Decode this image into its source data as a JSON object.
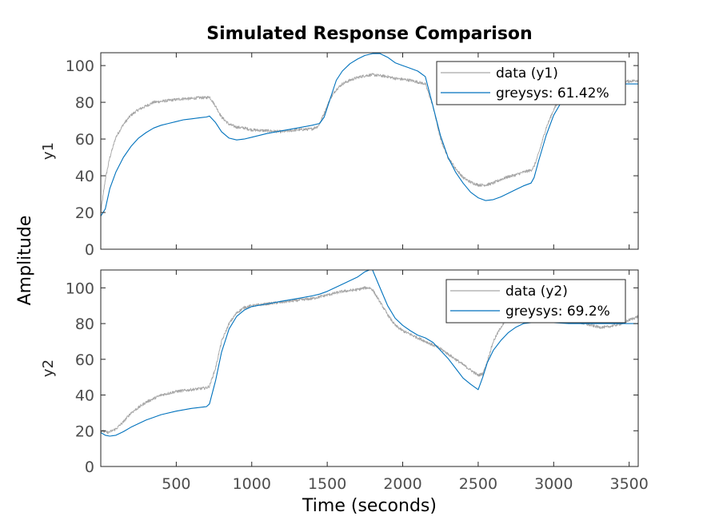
{
  "figure": {
    "title": "Simulated Response Comparison",
    "shared_ylabel": "Amplitude",
    "xlabel": "Time (seconds)"
  },
  "colors": {
    "data": "#a6a6a6",
    "model": "#0072bd"
  },
  "chart_data": [
    {
      "type": "line",
      "ylabel": "y1",
      "xlim": [
        0,
        3560
      ],
      "ylim": [
        0,
        107
      ],
      "xticks": [],
      "yticks": [
        0,
        20,
        40,
        60,
        80,
        100
      ],
      "legend_position": "top-right",
      "series": [
        {
          "name": "data (y1)",
          "color": "#a6a6a6",
          "noisy": true,
          "x": [
            0,
            30,
            60,
            100,
            150,
            200,
            250,
            300,
            350,
            400,
            450,
            500,
            550,
            600,
            650,
            700,
            720,
            760,
            800,
            850,
            900,
            950,
            1000,
            1100,
            1200,
            1300,
            1400,
            1440,
            1480,
            1520,
            1560,
            1600,
            1650,
            1700,
            1750,
            1800,
            1850,
            1900,
            1950,
            2000,
            2050,
            2100,
            2150,
            2200,
            2250,
            2300,
            2350,
            2400,
            2450,
            2500,
            2550,
            2600,
            2650,
            2700,
            2750,
            2800,
            2850,
            2870,
            2900,
            2950,
            3000,
            3050,
            3100,
            3150,
            3200,
            3300,
            3400,
            3500,
            3560
          ],
          "y": [
            20,
            38,
            50,
            61,
            68,
            73,
            76,
            78,
            80,
            80.5,
            81,
            81.5,
            82,
            82,
            82.5,
            82.5,
            83,
            78,
            72,
            68,
            66.5,
            66,
            65,
            64.5,
            64,
            65,
            65.5,
            67,
            74,
            82,
            87,
            90,
            92,
            93.5,
            94.5,
            95,
            94.5,
            94,
            93,
            92.5,
            92,
            91,
            90,
            78,
            60,
            50,
            44,
            39,
            36.5,
            35,
            35,
            36,
            38,
            39.5,
            40.5,
            42,
            43,
            45,
            52,
            66,
            76,
            83,
            87,
            90,
            90,
            91,
            91,
            91.5,
            92
          ]
        },
        {
          "name": "greysys: 61.42%",
          "color": "#0072bd",
          "noisy": false,
          "x": [
            0,
            30,
            60,
            100,
            150,
            200,
            250,
            300,
            350,
            400,
            450,
            500,
            550,
            600,
            650,
            700,
            720,
            760,
            800,
            850,
            900,
            950,
            1000,
            1100,
            1200,
            1300,
            1400,
            1450,
            1480,
            1520,
            1560,
            1600,
            1650,
            1700,
            1750,
            1800,
            1850,
            1900,
            1950,
            2000,
            2050,
            2100,
            2150,
            2200,
            2250,
            2300,
            2350,
            2400,
            2450,
            2500,
            2550,
            2600,
            2650,
            2700,
            2750,
            2800,
            2850,
            2870,
            2900,
            2950,
            3000,
            3050,
            3100,
            3150,
            3200,
            3300,
            3400,
            3500,
            3560
          ],
          "y": [
            18,
            22,
            33,
            42,
            50,
            56,
            60.5,
            63.5,
            66,
            67.5,
            68.5,
            69.5,
            70.5,
            71,
            71.5,
            72,
            72.5,
            69,
            64,
            60.5,
            59.5,
            60,
            61,
            63,
            64.5,
            66,
            67.5,
            68.5,
            72,
            82,
            92,
            97,
            101,
            103.5,
            105.5,
            106.5,
            106.5,
            104.5,
            101.5,
            100,
            98.5,
            97,
            94,
            78,
            62,
            50,
            42,
            36,
            31,
            28,
            26.5,
            27,
            28.5,
            30.5,
            32.5,
            34.5,
            36,
            39,
            48,
            62,
            73,
            80,
            86,
            89,
            90,
            90,
            90,
            90,
            90
          ]
        }
      ]
    },
    {
      "type": "line",
      "ylabel": "y2",
      "xlim": [
        0,
        3560
      ],
      "ylim": [
        0,
        110
      ],
      "xticks": [
        500,
        1000,
        1500,
        2000,
        2500,
        3000,
        3500
      ],
      "yticks": [
        0,
        20,
        40,
        60,
        80,
        100
      ],
      "legend_position": "top-right",
      "series": [
        {
          "name": "data (y2)",
          "color": "#a6a6a6",
          "noisy": true,
          "x": [
            0,
            50,
            100,
            150,
            200,
            300,
            400,
            500,
            600,
            700,
            720,
            760,
            800,
            850,
            900,
            950,
            1000,
            1100,
            1200,
            1300,
            1400,
            1500,
            1600,
            1700,
            1750,
            1780,
            1800,
            1850,
            1900,
            1950,
            2000,
            2050,
            2100,
            2150,
            2200,
            2250,
            2300,
            2350,
            2400,
            2450,
            2500,
            2530,
            2550,
            2600,
            2650,
            2700,
            2750,
            2800,
            2850,
            2900,
            2950,
            3000,
            3050,
            3100,
            3150,
            3200,
            3250,
            3300,
            3350,
            3400,
            3450,
            3500,
            3560
          ],
          "y": [
            20,
            19,
            21,
            25,
            30,
            36,
            40,
            42,
            43,
            44,
            45,
            55,
            70,
            80,
            86,
            89,
            90,
            91,
            92,
            93,
            94,
            96,
            98,
            99,
            100,
            100,
            99,
            92,
            85,
            79,
            76,
            74,
            72,
            70,
            68,
            66,
            63,
            60,
            57,
            54,
            51,
            52,
            56,
            70,
            78,
            83,
            85,
            86,
            86.5,
            86,
            85,
            84,
            83,
            82,
            81,
            80,
            79,
            78,
            78,
            79,
            80,
            82,
            84
          ]
        },
        {
          "name": "greysys: 69.2%",
          "color": "#0072bd",
          "noisy": false,
          "x": [
            0,
            30,
            60,
            100,
            150,
            200,
            300,
            400,
            500,
            600,
            700,
            720,
            760,
            800,
            850,
            900,
            950,
            1000,
            1100,
            1200,
            1300,
            1400,
            1450,
            1500,
            1600,
            1700,
            1750,
            1780,
            1800,
            1850,
            1900,
            1950,
            2000,
            2050,
            2100,
            2150,
            2200,
            2250,
            2300,
            2350,
            2400,
            2450,
            2500,
            2530,
            2560,
            2600,
            2650,
            2700,
            2750,
            2800,
            2850,
            2900,
            3000,
            3100,
            3200,
            3300,
            3400,
            3500,
            3560
          ],
          "y": [
            19,
            17.5,
            17,
            17.5,
            19.5,
            22,
            26,
            29,
            31,
            32.5,
            33.5,
            35,
            48,
            64,
            77,
            84,
            87.5,
            89.5,
            91,
            92.5,
            94,
            95.5,
            96.5,
            98,
            102,
            106,
            109,
            110,
            110,
            100,
            90,
            83,
            79,
            76,
            73.5,
            72,
            69.5,
            65,
            60.5,
            55,
            49.5,
            46,
            43,
            50,
            58,
            65,
            70.5,
            75,
            78,
            80,
            80.5,
            80.5,
            80.5,
            80,
            80,
            80,
            80,
            80,
            80
          ]
        }
      ]
    }
  ]
}
